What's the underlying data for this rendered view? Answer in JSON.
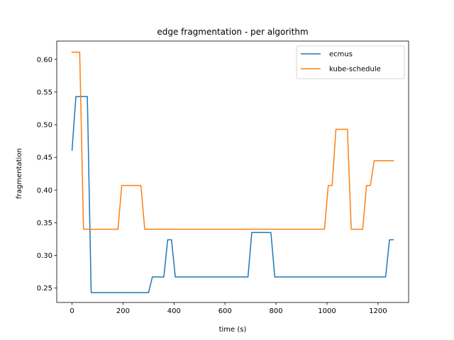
{
  "chart_data": {
    "type": "line",
    "title": "edge fragmentation - per algorithm",
    "xlabel": "time (s)",
    "ylabel": "fragmentation",
    "xlim": [
      -60,
      1320
    ],
    "ylim": [
      0.228,
      0.628
    ],
    "xticks": [
      0,
      200,
      400,
      600,
      800,
      1000,
      1200
    ],
    "xtick_labels": [
      "0",
      "200",
      "400",
      "600",
      "800",
      "1000",
      "1200"
    ],
    "yticks": [
      0.25,
      0.3,
      0.35,
      0.4,
      0.45,
      0.5,
      0.55,
      0.6
    ],
    "ytick_labels": [
      "0.25",
      "0.30",
      "0.35",
      "0.40",
      "0.45",
      "0.50",
      "0.55",
      "0.60"
    ],
    "grid": false,
    "legend_position": "top-right",
    "series": [
      {
        "name": "ecmus",
        "color": "#1f77b4",
        "points": [
          [
            0,
            0.461
          ],
          [
            15,
            0.543
          ],
          [
            60,
            0.543
          ],
          [
            75,
            0.243
          ],
          [
            300,
            0.243
          ],
          [
            315,
            0.267
          ],
          [
            360,
            0.267
          ],
          [
            375,
            0.324
          ],
          [
            390,
            0.324
          ],
          [
            405,
            0.267
          ],
          [
            690,
            0.267
          ],
          [
            705,
            0.335
          ],
          [
            780,
            0.335
          ],
          [
            795,
            0.267
          ],
          [
            1230,
            0.267
          ],
          [
            1245,
            0.324
          ],
          [
            1260,
            0.324
          ]
        ]
      },
      {
        "name": "kube-schedule",
        "color": "#ff7f0e",
        "points": [
          [
            0,
            0.611
          ],
          [
            30,
            0.611
          ],
          [
            45,
            0.34
          ],
          [
            180,
            0.34
          ],
          [
            195,
            0.407
          ],
          [
            270,
            0.407
          ],
          [
            285,
            0.34
          ],
          [
            990,
            0.34
          ],
          [
            1005,
            0.407
          ],
          [
            1020,
            0.407
          ],
          [
            1035,
            0.493
          ],
          [
            1080,
            0.493
          ],
          [
            1095,
            0.34
          ],
          [
            1140,
            0.34
          ],
          [
            1155,
            0.407
          ],
          [
            1170,
            0.407
          ],
          [
            1185,
            0.445
          ],
          [
            1260,
            0.445
          ]
        ]
      }
    ]
  }
}
